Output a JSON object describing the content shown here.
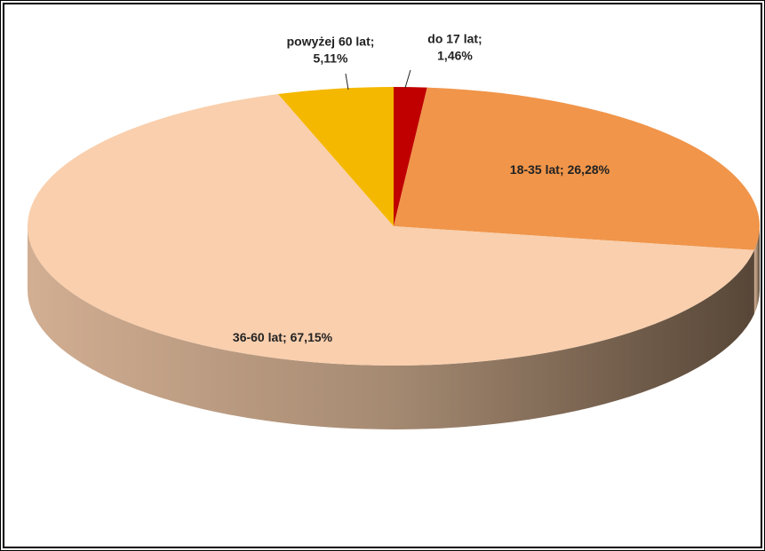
{
  "chart_data": {
    "type": "pie3d",
    "categories": [
      "do 17 lat;",
      "18-35 lat;",
      "36-60 lat;",
      "powyżej 60 lat;"
    ],
    "values": [
      1.46,
      26.28,
      67.15,
      5.11
    ],
    "value_labels": [
      "1,46%",
      "26,28%",
      "67,15%",
      "5,11%"
    ],
    "colors": [
      "#c00000",
      "#f0954a",
      "#f9cfad",
      "#f5b800"
    ]
  }
}
